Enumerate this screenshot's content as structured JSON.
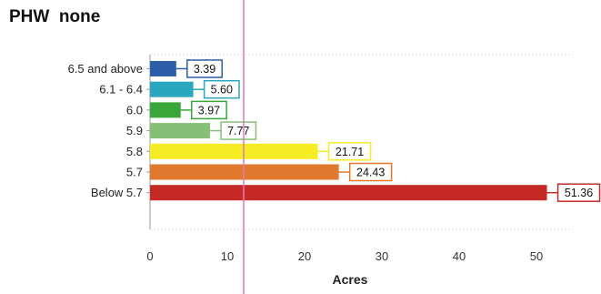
{
  "page": {
    "title": "PHW  none"
  },
  "chart_data": {
    "type": "bar",
    "orientation": "horizontal",
    "categories": [
      "6.5 and above",
      "6.1 - 6.4",
      "6.0",
      "5.9",
      "5.8",
      "5.7",
      "Below 5.7"
    ],
    "values": [
      3.39,
      5.6,
      3.97,
      7.77,
      21.71,
      24.43,
      51.36
    ],
    "value_labels": [
      "3.39",
      "5.60",
      "3.97",
      "7.77",
      "21.71",
      "24.43",
      "51.36"
    ],
    "colors": [
      "#2b5fa8",
      "#2aa6bf",
      "#3aa63a",
      "#86c077",
      "#f6ec25",
      "#e0782e",
      "#c62a26"
    ],
    "title": "PHW  none",
    "xlabel": "Acres",
    "ylabel": "",
    "xlim": [
      0,
      55
    ],
    "xticks": [
      0,
      10,
      20,
      30,
      40,
      50
    ],
    "grid": false,
    "legend": "none"
  }
}
